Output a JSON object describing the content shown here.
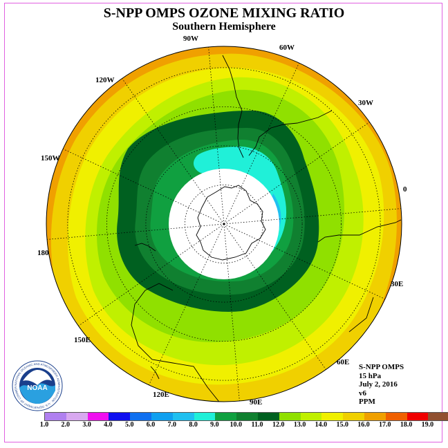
{
  "title": "S-NPP OMPS OZONE MIXING RATIO",
  "subtitle": "Southern Hemisphere",
  "longitude_labels": {
    "lon_90w": "90W",
    "lon_60w": "60W",
    "lon_30w": "30W",
    "lon_0": "0",
    "lon_30e": "30E",
    "lon_60e": "60E",
    "lon_90e": "90E",
    "lon_120e": "120E",
    "lon_150e": "150E",
    "lon_180": "180",
    "lon_150w": "150W",
    "lon_120w": "120W"
  },
  "metadata": {
    "instrument": "S-NPP OMPS",
    "level": "15 hPa",
    "date": "July 2, 2016",
    "version": "v6",
    "units": "PPM"
  },
  "colorbar": {
    "ticks": [
      "1.0",
      "2.0",
      "3.0",
      "4.0",
      "5.0",
      "6.0",
      "7.0",
      "8.0",
      "9.0",
      "10.0",
      "11.0",
      "12.0",
      "13.0",
      "14.0",
      "15.0",
      "16.0",
      "17.0",
      "18.0",
      "19.0"
    ],
    "colors": [
      "#b080f0",
      "#d8a8f0",
      "#f010f0",
      "#1010f0",
      "#1070f0",
      "#10a0f0",
      "#20c0f0",
      "#20f0d8",
      "#10a040",
      "#108030",
      "#006020",
      "#90e000",
      "#c0f000",
      "#f0f000",
      "#f0d000",
      "#f0a000",
      "#f06000",
      "#f00000",
      "#905030"
    ]
  },
  "logo": {
    "text": "NOAA",
    "ring_text": "NATIONAL OCEANIC AND ATMOSPHERIC ADMINISTRATION · U.S. DEPARTMENT OF COMMERCE"
  },
  "map_colors": {
    "band_16": "#f0a000",
    "band_15": "#f0d000",
    "band_14": "#f0f000",
    "band_13": "#c0f000",
    "band_12": "#90e000",
    "band_11": "#006020",
    "band_10": "#108030",
    "band_9": "#10a040",
    "band_8": "#20f0d8",
    "band_7": "#20c0f0",
    "missing": "#ffffff"
  }
}
